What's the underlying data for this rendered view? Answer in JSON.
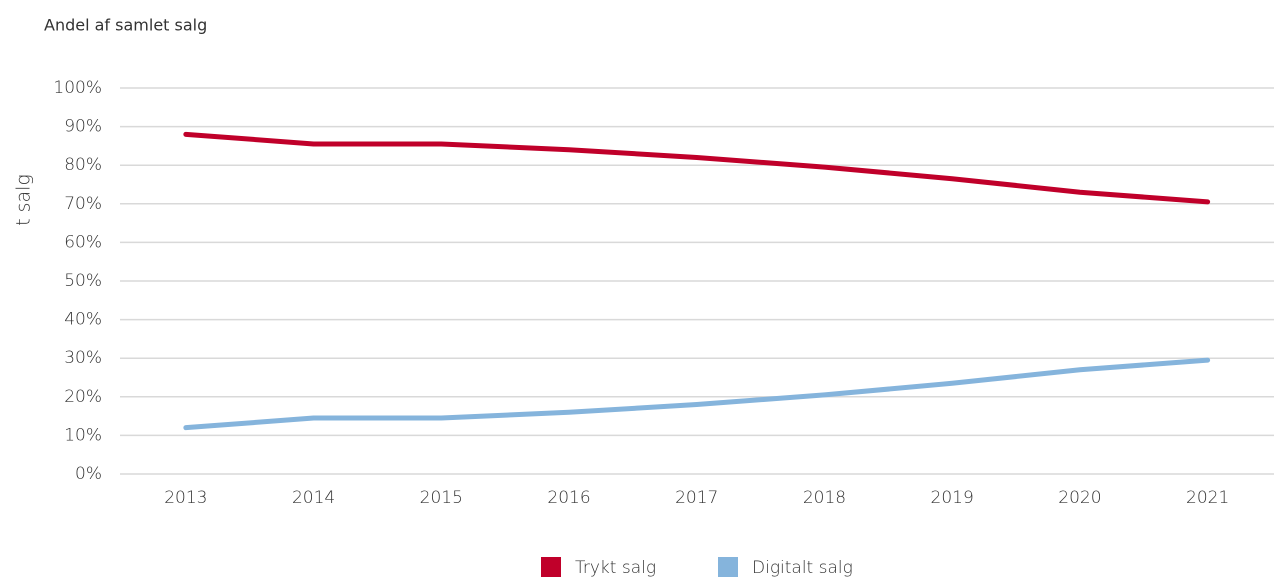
{
  "chart_data": {
    "type": "line",
    "title": "Andel af samlet salg",
    "y_label": "t salg",
    "categories": [
      "2013",
      "2014",
      "2015",
      "2016",
      "2017",
      "2018",
      "2019",
      "2020",
      "2021"
    ],
    "series": [
      {
        "name": "Trykt salg",
        "color": "#c0002a",
        "values": [
          88,
          85.5,
          85.5,
          84,
          82,
          79.5,
          76.5,
          73,
          70.5
        ]
      },
      {
        "name": "Digitalt salg",
        "color": "#85b4dc",
        "values": [
          12,
          14.5,
          14.5,
          16,
          18,
          20.5,
          23.5,
          27,
          29.5
        ]
      }
    ],
    "ylim": [
      0,
      100
    ],
    "yticks": [
      {
        "value": 0,
        "label": "0%"
      },
      {
        "value": 10,
        "label": "10%"
      },
      {
        "value": 20,
        "label": "20%"
      },
      {
        "value": 30,
        "label": "30%"
      },
      {
        "value": 40,
        "label": "40%"
      },
      {
        "value": 50,
        "label": "50%"
      },
      {
        "value": 60,
        "label": "60%"
      },
      {
        "value": 70,
        "label": "70%"
      },
      {
        "value": 80,
        "label": "80%"
      },
      {
        "value": 90,
        "label": "90%"
      },
      {
        "value": 100,
        "label": "100%"
      }
    ],
    "grid": true,
    "legend": "bottom"
  }
}
